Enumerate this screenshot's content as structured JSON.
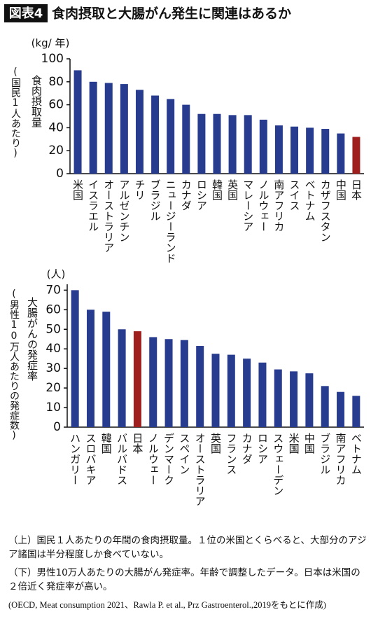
{
  "header": {
    "badge": "図表4",
    "title": "食肉摂取と大腸がん発生に関連はあるか"
  },
  "chart_data": [
    {
      "type": "bar",
      "unit_label": "(kg/ 年)",
      "y_label": "食肉摂取量",
      "y_sublabel": "(国民1人あたり)",
      "categories": [
        "米国",
        "イスラエル",
        "オーストラリア",
        "アルゼンチン",
        "チリ",
        "ブラジル",
        "ニュージーランド",
        "カナダ",
        "ロシア",
        "韓国",
        "英国",
        "マレーシア",
        "ノルウェー",
        "南アフリカ",
        "スイス",
        "ベトナム",
        "カザフスタン",
        "中国",
        "日本"
      ],
      "values": [
        90,
        80,
        79,
        78,
        73,
        68,
        65,
        60,
        52,
        52,
        51,
        51,
        47,
        42,
        41,
        40,
        39,
        35,
        32
      ],
      "colors": [
        "#283c8f",
        "#283c8f",
        "#283c8f",
        "#283c8f",
        "#283c8f",
        "#283c8f",
        "#283c8f",
        "#283c8f",
        "#283c8f",
        "#283c8f",
        "#283c8f",
        "#283c8f",
        "#283c8f",
        "#283c8f",
        "#283c8f",
        "#283c8f",
        "#283c8f",
        "#283c8f",
        "#9e1f1d"
      ],
      "ylim": [
        0,
        100
      ],
      "yticks": [
        0,
        20,
        40,
        60,
        80,
        100
      ]
    },
    {
      "type": "bar",
      "unit_label": "(人)",
      "y_label": "大腸がんの発症率",
      "y_sublabel": "(男性10万人あたりの発症数)",
      "categories": [
        "ハンガリー",
        "スロバキア",
        "韓国",
        "バルバドス",
        "日本",
        "ノルウェー",
        "デンマーク",
        "スペイン",
        "オーストラリア",
        "英国",
        "フランス",
        "カナダ",
        "ロシア",
        "スウェーデン",
        "米国",
        "中国",
        "ブラジル",
        "南アフリカ",
        "ベトナム"
      ],
      "values": [
        70,
        60,
        59,
        50,
        49,
        46,
        45,
        44.5,
        41.5,
        37.5,
        37,
        35,
        33,
        29.5,
        28.5,
        27.5,
        21,
        18,
        16
      ],
      "colors": [
        "#283c8f",
        "#283c8f",
        "#283c8f",
        "#283c8f",
        "#9e1f1d",
        "#283c8f",
        "#283c8f",
        "#283c8f",
        "#283c8f",
        "#283c8f",
        "#283c8f",
        "#283c8f",
        "#283c8f",
        "#283c8f",
        "#283c8f",
        "#283c8f",
        "#283c8f",
        "#283c8f",
        "#283c8f"
      ],
      "ylim": [
        0,
        73
      ],
      "yticks": [
        0,
        10,
        20,
        30,
        40,
        50,
        60,
        70
      ]
    }
  ],
  "notes": [
    "（上）国民１人あたりの年間の食肉摂取量。１位の米国とくらべると、大部分のアジア諸国は半分程度しか食べていない。",
    "（下）男性10万人あたりの大腸がん発症率。年齢で調整したデータ。日本は米国の２倍近く発症率が高い。",
    "(OECD, Meat consumption 2021、Rawla P. et al., Prz Gastroenterol.,2019をもとに作成)"
  ]
}
